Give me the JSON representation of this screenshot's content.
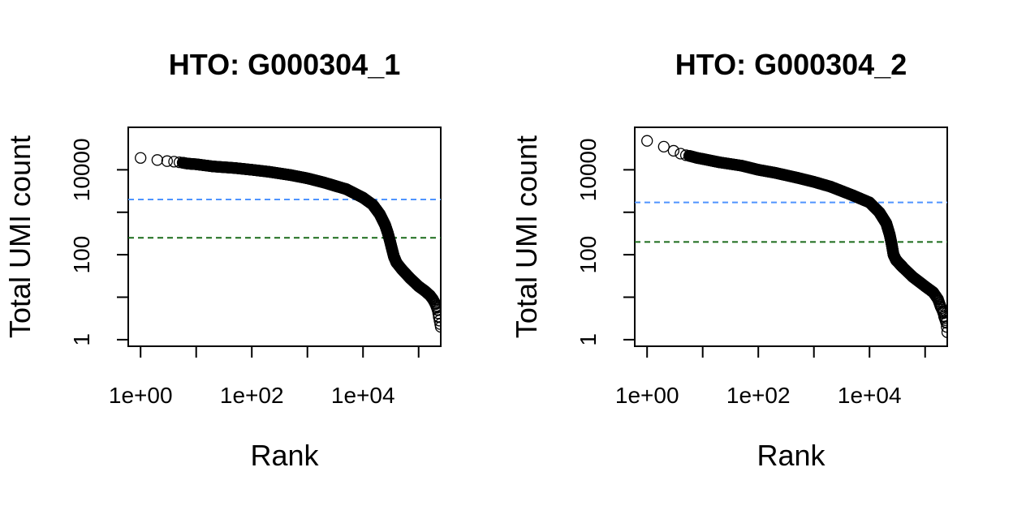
{
  "chart_data": [
    {
      "type": "scatter",
      "title": "HTO: G000304_1",
      "xlabel": "Rank",
      "ylabel": "Total UMI count",
      "xscale": "log",
      "yscale": "log",
      "xlim": [
        0.6,
        250000
      ],
      "ylim": [
        0.7,
        100000
      ],
      "x_ticks": [
        1,
        10,
        100,
        1000,
        10000,
        100000
      ],
      "x_tick_labels": [
        "1e+00",
        "",
        "1e+02",
        "",
        "1e+04",
        ""
      ],
      "y_ticks": [
        1,
        10,
        100,
        1000,
        10000
      ],
      "y_tick_labels": [
        "1",
        "",
        "100",
        "",
        "10000"
      ],
      "grid": false,
      "marker": "open-circle",
      "hlines": [
        {
          "y": 2000,
          "color": "#4f94ff",
          "style": "dashed"
        },
        {
          "y": 250,
          "color": "#1a6b1a",
          "style": "dashed"
        }
      ],
      "points": [
        [
          1,
          19000
        ],
        [
          2,
          17000
        ],
        [
          3,
          16000
        ],
        [
          4,
          15500
        ],
        [
          5,
          15000
        ],
        [
          6,
          14500
        ],
        [
          7,
          14000
        ],
        [
          8,
          13800
        ],
        [
          10,
          13500
        ],
        [
          20,
          12000
        ],
        [
          50,
          11000
        ],
        [
          100,
          10000
        ],
        [
          200,
          9000
        ],
        [
          500,
          7500
        ],
        [
          1000,
          6300
        ],
        [
          2000,
          5000
        ],
        [
          5000,
          3500
        ],
        [
          10000,
          2200
        ],
        [
          15000,
          1500
        ],
        [
          20000,
          900
        ],
        [
          25000,
          500
        ],
        [
          28000,
          320
        ],
        [
          30000,
          230
        ],
        [
          33000,
          140
        ],
        [
          36000,
          90
        ],
        [
          40000,
          65
        ],
        [
          50000,
          45
        ],
        [
          70000,
          28
        ],
        [
          100000,
          18
        ],
        [
          130000,
          14
        ],
        [
          160000,
          11
        ],
        [
          180000,
          9
        ],
        [
          200000,
          7
        ],
        [
          220000,
          5
        ],
        [
          230000,
          3.5
        ],
        [
          250000,
          2
        ]
      ]
    },
    {
      "type": "scatter",
      "title": "HTO: G000304_2",
      "xlabel": "Rank",
      "ylabel": "Total UMI count",
      "xscale": "log",
      "yscale": "log",
      "xlim": [
        0.6,
        250000
      ],
      "ylim": [
        0.7,
        100000
      ],
      "x_ticks": [
        1,
        10,
        100,
        1000,
        10000,
        100000
      ],
      "x_tick_labels": [
        "1e+00",
        "",
        "1e+02",
        "",
        "1e+04",
        ""
      ],
      "y_ticks": [
        1,
        10,
        100,
        1000,
        10000
      ],
      "y_tick_labels": [
        "1",
        "",
        "100",
        "",
        "10000"
      ],
      "grid": false,
      "marker": "open-circle",
      "hlines": [
        {
          "y": 1700,
          "color": "#4f94ff",
          "style": "dashed"
        },
        {
          "y": 200,
          "color": "#1a6b1a",
          "style": "dashed"
        }
      ],
      "points": [
        [
          1,
          48000
        ],
        [
          2,
          35000
        ],
        [
          3,
          28000
        ],
        [
          4,
          24000
        ],
        [
          5,
          22000
        ],
        [
          6,
          21000
        ],
        [
          8,
          19000
        ],
        [
          10,
          18000
        ],
        [
          20,
          15000
        ],
        [
          50,
          12500
        ],
        [
          100,
          10000
        ],
        [
          200,
          8500
        ],
        [
          500,
          6500
        ],
        [
          1000,
          5200
        ],
        [
          2000,
          4000
        ],
        [
          5000,
          2500
        ],
        [
          10000,
          1700
        ],
        [
          15000,
          1000
        ],
        [
          20000,
          550
        ],
        [
          23000,
          300
        ],
        [
          25000,
          180
        ],
        [
          27000,
          100
        ],
        [
          30000,
          75
        ],
        [
          40000,
          50
        ],
        [
          60000,
          30
        ],
        [
          100000,
          18
        ],
        [
          140000,
          13
        ],
        [
          170000,
          9
        ],
        [
          190000,
          6
        ],
        [
          210000,
          4.5
        ],
        [
          220000,
          3.5
        ],
        [
          240000,
          2.5
        ],
        [
          250000,
          1.5
        ]
      ]
    }
  ]
}
